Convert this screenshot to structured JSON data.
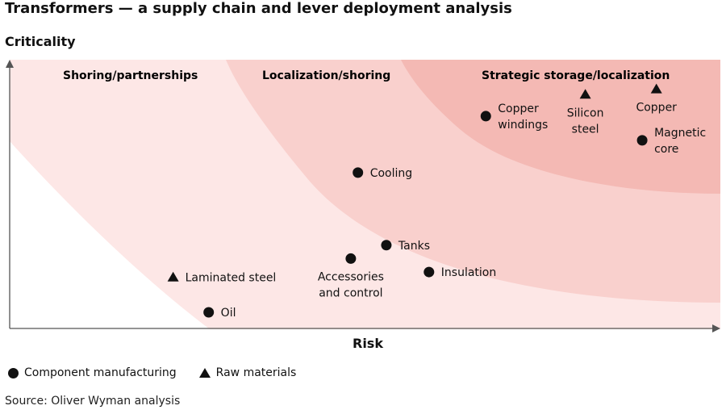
{
  "chart_data": {
    "type": "scatter",
    "title": "Transformers — a supply chain and lever deployment analysis",
    "ylabel": "Criticality",
    "xlabel": "Risk",
    "xlim": [
      0,
      100
    ],
    "ylim": [
      0,
      100
    ],
    "zones": [
      {
        "name": "Shoring/partnerships",
        "color": "#fde7e6"
      },
      {
        "name": "Localization/shoring",
        "color": "#f9d0cd"
      },
      {
        "name": "Strategic storage/localization",
        "color": "#f4b9b4"
      }
    ],
    "series": [
      {
        "name": "Component manufacturing",
        "marker": "circle",
        "points": [
          {
            "label": "Oil",
            "x": 28,
            "y": 6
          },
          {
            "label": "Accessories and control",
            "x": 48,
            "y": 26
          },
          {
            "label": "Tanks",
            "x": 53,
            "y": 31
          },
          {
            "label": "Insulation",
            "x": 59,
            "y": 21
          },
          {
            "label": "Cooling",
            "x": 49,
            "y": 58
          },
          {
            "label": "Copper windings",
            "x": 67,
            "y": 79
          },
          {
            "label": "Magnetic core",
            "x": 89,
            "y": 70
          }
        ]
      },
      {
        "name": "Raw materials",
        "marker": "triangle",
        "points": [
          {
            "label": "Laminated steel",
            "x": 23,
            "y": 19
          },
          {
            "label": "Silicon steel",
            "x": 81,
            "y": 87
          },
          {
            "label": "Copper",
            "x": 91,
            "y": 89
          }
        ]
      }
    ],
    "source": "Source: Oliver Wyman analysis"
  }
}
